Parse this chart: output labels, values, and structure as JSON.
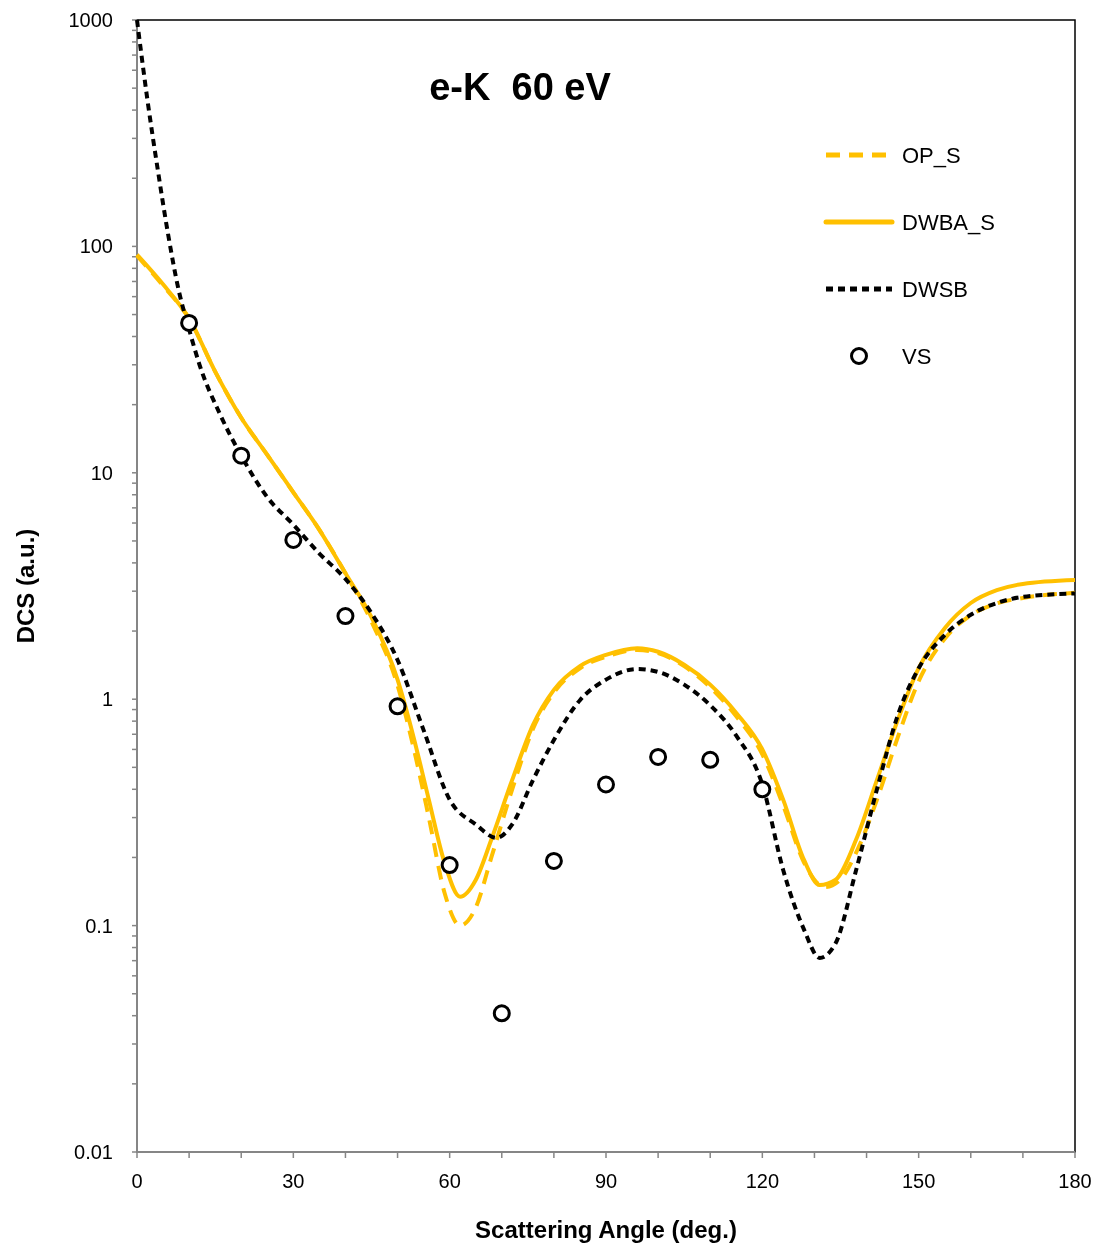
{
  "chart_data": {
    "type": "line",
    "title": "e-K  60 eV",
    "xlabel": "Scattering Angle (deg.)",
    "ylabel": "DCS (a.u.)",
    "xlim": [
      0,
      180
    ],
    "xticks": [
      0,
      {
        "value": 10,
        "label": null
      },
      {
        "value": 20,
        "label": null
      },
      30,
      {
        "value": 40,
        "label": null
      },
      {
        "value": 50,
        "label": null
      },
      60,
      {
        "value": 70,
        "label": null
      },
      {
        "value": 80,
        "label": null
      },
      90,
      {
        "value": 100,
        "label": null
      },
      {
        "value": 110,
        "label": null
      },
      120,
      {
        "value": 130,
        "label": null
      },
      {
        "value": 140,
        "label": null
      },
      150,
      {
        "value": 160,
        "label": null
      },
      {
        "value": 170,
        "label": null
      },
      180
    ],
    "ylim": [
      0.01,
      1000
    ],
    "log": "y",
    "yticks": [
      0.01,
      {
        "value": 0.02,
        "label": null
      },
      {
        "value": 0.03,
        "label": null
      },
      {
        "value": 0.04,
        "label": null
      },
      {
        "value": 0.05,
        "label": null
      },
      {
        "value": 0.06,
        "label": null
      },
      {
        "value": 0.07,
        "label": null
      },
      {
        "value": 0.08,
        "label": null
      },
      {
        "value": 0.09,
        "label": null
      },
      0.1,
      {
        "value": 0.2,
        "label": null
      },
      {
        "value": 0.3,
        "label": null
      },
      {
        "value": 0.4,
        "label": null
      },
      {
        "value": 0.5,
        "label": null
      },
      {
        "value": 0.6,
        "label": null
      },
      {
        "value": 0.7,
        "label": null
      },
      {
        "value": 0.8,
        "label": null
      },
      {
        "value": 0.9,
        "label": null
      },
      1,
      {
        "value": 2,
        "label": null
      },
      {
        "value": 3,
        "label": null
      },
      {
        "value": 4,
        "label": null
      },
      {
        "value": 5,
        "label": null
      },
      {
        "value": 6,
        "label": null
      },
      {
        "value": 7,
        "label": null
      },
      {
        "value": 8,
        "label": null
      },
      {
        "value": 9,
        "label": null
      },
      10,
      {
        "value": 20,
        "label": null
      },
      {
        "value": 30,
        "label": null
      },
      {
        "value": 40,
        "label": null
      },
      {
        "value": 50,
        "label": null
      },
      {
        "value": 60,
        "label": null
      },
      {
        "value": 70,
        "label": null
      },
      {
        "value": 80,
        "label": null
      },
      {
        "value": 90,
        "label": null
      },
      100,
      {
        "value": 200,
        "label": null
      },
      {
        "value": 300,
        "label": null
      },
      {
        "value": 400,
        "label": null
      },
      {
        "value": 500,
        "label": null
      },
      {
        "value": 600,
        "label": null
      },
      {
        "value": 700,
        "label": null
      },
      {
        "value": 800,
        "label": null
      },
      {
        "value": 900,
        "label": null
      },
      1000
    ],
    "grid": false,
    "legend": "top right",
    "series": [
      {
        "name": "OP_S",
        "color": "#ffc000",
        "line_style": "dashed",
        "marker": "none",
        "x": [
          0,
          5,
          10,
          15,
          20,
          25,
          30,
          35,
          40,
          45,
          50,
          53,
          56,
          59,
          62,
          65,
          68,
          72,
          76,
          80,
          85,
          90,
          96,
          100,
          105,
          110,
          115,
          120,
          124,
          128,
          132,
          135,
          138,
          142,
          146,
          150,
          155,
          160,
          165,
          170,
          180
        ],
        "values": [
          91,
          67,
          48,
          28,
          17.5,
          12,
          8.2,
          5.6,
          3.6,
          2.2,
          1.15,
          0.62,
          0.3,
          0.14,
          0.1,
          0.12,
          0.2,
          0.4,
          0.74,
          1.07,
          1.37,
          1.54,
          1.65,
          1.6,
          1.4,
          1.13,
          0.84,
          0.57,
          0.34,
          0.19,
          0.148,
          0.16,
          0.21,
          0.36,
          0.68,
          1.2,
          1.85,
          2.35,
          2.65,
          2.8,
          2.95
        ]
      },
      {
        "name": "DWBA_S",
        "color": "#ffc000",
        "line_style": "solid",
        "marker": "none",
        "x": [
          0,
          5,
          10,
          15,
          20,
          25,
          30,
          35,
          40,
          45,
          50,
          53,
          56,
          59,
          62,
          65,
          68,
          72,
          76,
          80,
          85,
          90,
          96,
          100,
          105,
          110,
          115,
          120,
          124,
          128,
          131,
          134,
          138,
          142,
          146,
          150,
          155,
          160,
          165,
          170,
          180
        ],
        "values": [
          92,
          68,
          48,
          28,
          17.5,
          12,
          8.2,
          5.6,
          3.6,
          2.3,
          1.22,
          0.69,
          0.36,
          0.19,
          0.134,
          0.159,
          0.24,
          0.44,
          0.77,
          1.1,
          1.4,
          1.57,
          1.68,
          1.62,
          1.42,
          1.16,
          0.87,
          0.6,
          0.36,
          0.195,
          0.151,
          0.159,
          0.24,
          0.44,
          0.81,
          1.37,
          2.06,
          2.66,
          3.03,
          3.23,
          3.36
        ]
      },
      {
        "name": "DWSB",
        "color": "#000000",
        "line_style": "dotted",
        "marker": "none",
        "x": [
          0,
          2,
          4,
          6,
          8,
          10,
          12,
          16,
          20,
          25,
          30,
          35,
          40,
          45,
          50,
          55,
          60,
          65,
          69,
          72,
          76,
          80,
          85,
          90,
          96,
          100,
          105,
          110,
          115,
          120,
          124,
          128,
          131,
          134,
          138,
          142,
          146,
          150,
          155,
          160,
          165,
          170,
          180
        ],
        "values": [
          1000,
          444,
          217,
          112,
          64,
          43,
          30,
          18,
          11.9,
          7.8,
          5.9,
          4.4,
          3.4,
          2.4,
          1.49,
          0.73,
          0.36,
          0.28,
          0.244,
          0.28,
          0.44,
          0.66,
          0.99,
          1.22,
          1.36,
          1.32,
          1.16,
          0.94,
          0.69,
          0.42,
          0.176,
          0.096,
          0.072,
          0.083,
          0.176,
          0.4,
          0.85,
          1.37,
          1.92,
          2.36,
          2.66,
          2.83,
          2.93
        ]
      },
      {
        "name": "VS",
        "type": "scatter",
        "color": "#000000",
        "marker": "circle",
        "x": [
          10,
          20,
          30,
          40,
          50,
          60,
          70,
          80,
          90,
          100,
          110,
          120
        ],
        "values": [
          45.9,
          11.9,
          5.05,
          2.33,
          0.93,
          0.185,
          0.041,
          0.193,
          0.42,
          0.556,
          0.54,
          0.4
        ]
      }
    ]
  }
}
